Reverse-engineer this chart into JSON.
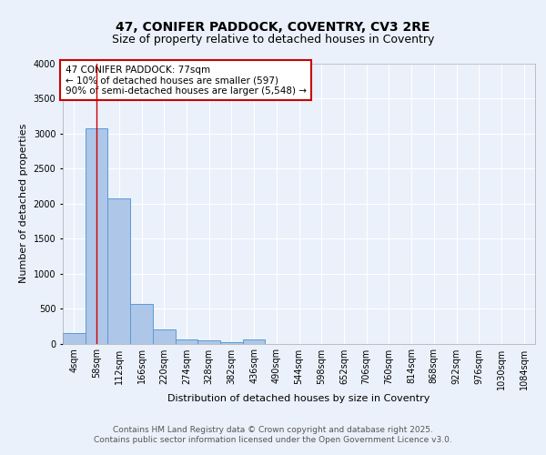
{
  "title": "47, CONIFER PADDOCK, COVENTRY, CV3 2RE",
  "subtitle": "Size of property relative to detached houses in Coventry",
  "xlabel": "Distribution of detached houses by size in Coventry",
  "ylabel": "Number of detached properties",
  "bin_labels": [
    "4sqm",
    "58sqm",
    "112sqm",
    "166sqm",
    "220sqm",
    "274sqm",
    "328sqm",
    "382sqm",
    "436sqm",
    "490sqm",
    "544sqm",
    "598sqm",
    "652sqm",
    "706sqm",
    "760sqm",
    "814sqm",
    "868sqm",
    "922sqm",
    "976sqm",
    "1030sqm",
    "1084sqm"
  ],
  "bar_heights": [
    150,
    3080,
    2080,
    570,
    200,
    65,
    40,
    20,
    60,
    0,
    0,
    0,
    0,
    0,
    0,
    0,
    0,
    0,
    0,
    0,
    0
  ],
  "bar_color": "#aec6e8",
  "bar_edge_color": "#5b9bd5",
  "vline_x": 1,
  "vline_color": "#cc0000",
  "annotation_text": "47 CONIFER PADDOCK: 77sqm\n← 10% of detached houses are smaller (597)\n90% of semi-detached houses are larger (5,548) →",
  "annotation_box_color": "#ffffff",
  "annotation_box_edge_color": "#cc0000",
  "ylim": [
    0,
    4000
  ],
  "yticks": [
    0,
    500,
    1000,
    1500,
    2000,
    2500,
    3000,
    3500,
    4000
  ],
  "bg_color": "#eaf1fb",
  "plot_bg_color": "#eaf1fb",
  "footer_text": "Contains HM Land Registry data © Crown copyright and database right 2025.\nContains public sector information licensed under the Open Government Licence v3.0.",
  "title_fontsize": 10,
  "subtitle_fontsize": 9,
  "axis_label_fontsize": 8,
  "tick_fontsize": 7,
  "annotation_fontsize": 7.5,
  "footer_fontsize": 6.5
}
